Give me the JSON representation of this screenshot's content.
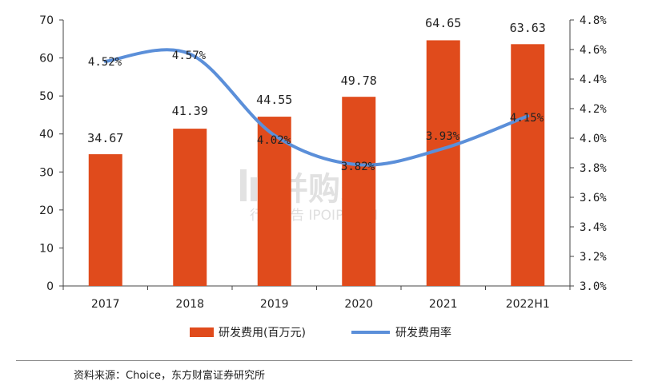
{
  "chart_data": {
    "type": "bar",
    "categories": [
      "2017",
      "2018",
      "2019",
      "2020",
      "2021",
      "2022H1"
    ],
    "series": [
      {
        "name": "研发费用(百万元)",
        "type": "bar",
        "axis": "left",
        "color": "#e04b1c",
        "values": [
          34.67,
          41.39,
          44.55,
          49.78,
          64.65,
          63.63
        ],
        "labels": [
          "34.67",
          "41.39",
          "44.55",
          "49.78",
          "64.65",
          "63.63"
        ]
      },
      {
        "name": "研发费用率",
        "type": "line",
        "axis": "right",
        "color": "#5b8fd9",
        "values": [
          4.52,
          4.57,
          4.02,
          3.82,
          3.93,
          4.15
        ],
        "labels": [
          "4.52%",
          "4.57%",
          "4.02%",
          "3.82%",
          "3.93%",
          "4.15%"
        ]
      }
    ],
    "y_left": {
      "min": 0,
      "max": 70,
      "step": 10,
      "ticks": [
        "0",
        "10",
        "20",
        "30",
        "40",
        "50",
        "60",
        "70"
      ]
    },
    "y_right": {
      "min": 3.0,
      "max": 4.8,
      "step": 0.2,
      "ticks": [
        "3.0%",
        "3.2%",
        "3.4%",
        "3.6%",
        "3.8%",
        "4.0%",
        "4.2%",
        "4.4%",
        "4.6%",
        "4.8%"
      ]
    },
    "legend_position": "bottom",
    "title": "",
    "xlabel": "",
    "ylabel": ""
  },
  "watermark": {
    "text_cn": "并购家",
    "text_en": "行业报告 IPOIPO.CN"
  },
  "source": "资料来源：Choice，东方财富证券研究所"
}
